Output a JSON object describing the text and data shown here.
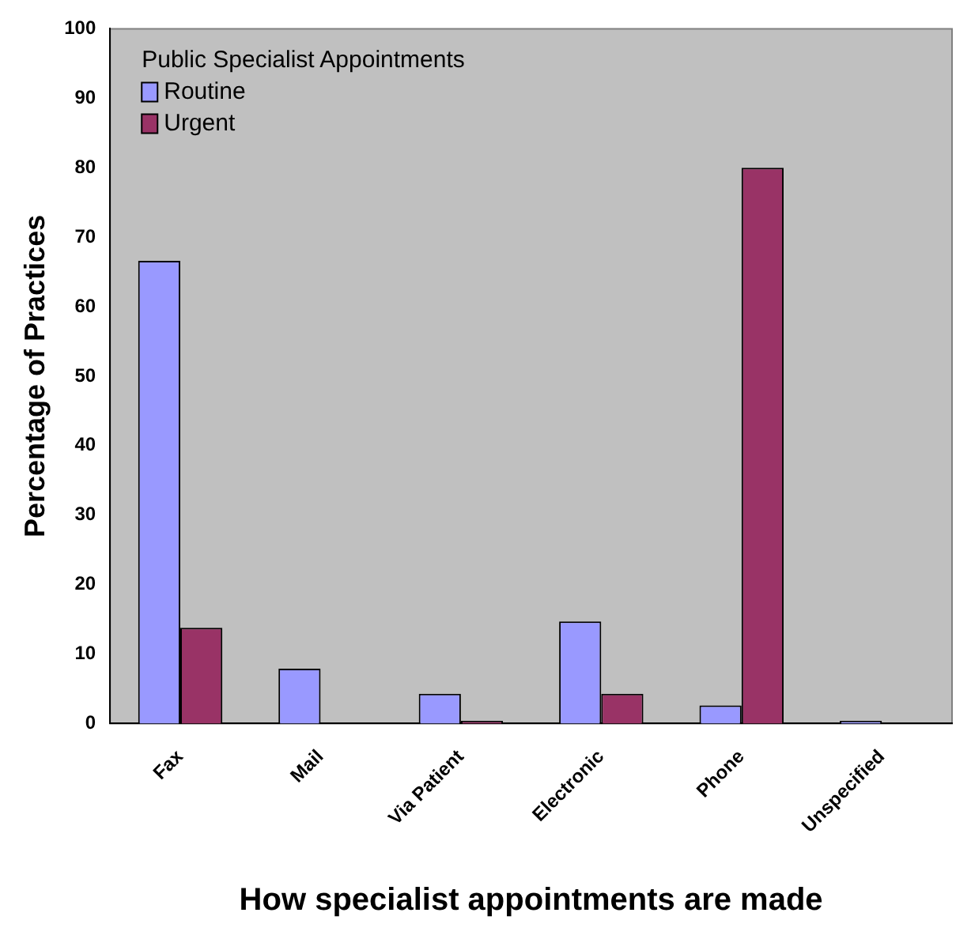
{
  "chart_data": {
    "type": "bar",
    "xlabel": "How specialist appointments are made",
    "ylabel": "Percentage of Practices",
    "legend_title": "Public Specialist Appointments",
    "legend": "top left",
    "grid": false,
    "categories": [
      "Fax",
      "Mail",
      "Via Patient",
      "Electronic",
      "Phone",
      "Unspecified"
    ],
    "ylim": [
      0,
      100
    ],
    "yticks": [
      0,
      10,
      20,
      30,
      40,
      50,
      60,
      70,
      80,
      90,
      100
    ],
    "series": [
      {
        "name": "Routine",
        "color": "#9999ff",
        "values": [
          66.6,
          7.9,
          4.3,
          14.7,
          2.6,
          0.4
        ]
      },
      {
        "name": "Urgent",
        "color": "#993366",
        "values": [
          13.8,
          0,
          0.4,
          4.3,
          80,
          0
        ]
      }
    ]
  }
}
